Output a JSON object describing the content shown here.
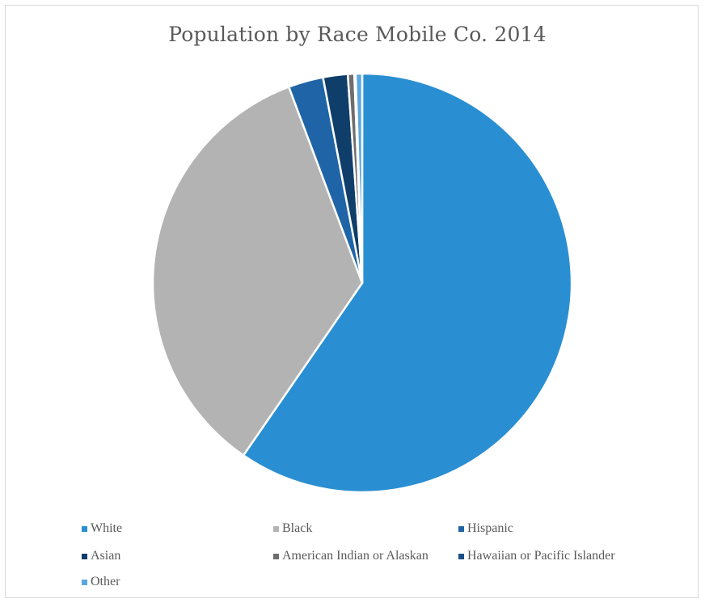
{
  "chart_data": {
    "type": "pie",
    "title": "Population by Race Mobile Co. 2014",
    "start_angle_deg": 0,
    "direction": "clockwise",
    "slices": [
      {
        "label": "White",
        "value": 59.6,
        "color": "#2a8fd2"
      },
      {
        "label": "Black",
        "value": 34.7,
        "color": "#b3b3b3"
      },
      {
        "label": "Hispanic",
        "value": 2.7,
        "color": "#1f64a6"
      },
      {
        "label": "Asian",
        "value": 1.9,
        "color": "#103e6a"
      },
      {
        "label": "American Indian or Alaskan",
        "value": 0.5,
        "color": "#6e6e6e"
      },
      {
        "label": "Hawaiian or Pacific Islander",
        "value": 0.1,
        "color": "#174f86"
      },
      {
        "label": "Other",
        "value": 0.5,
        "color": "#5aa7e0"
      }
    ],
    "legend_position": "bottom"
  }
}
